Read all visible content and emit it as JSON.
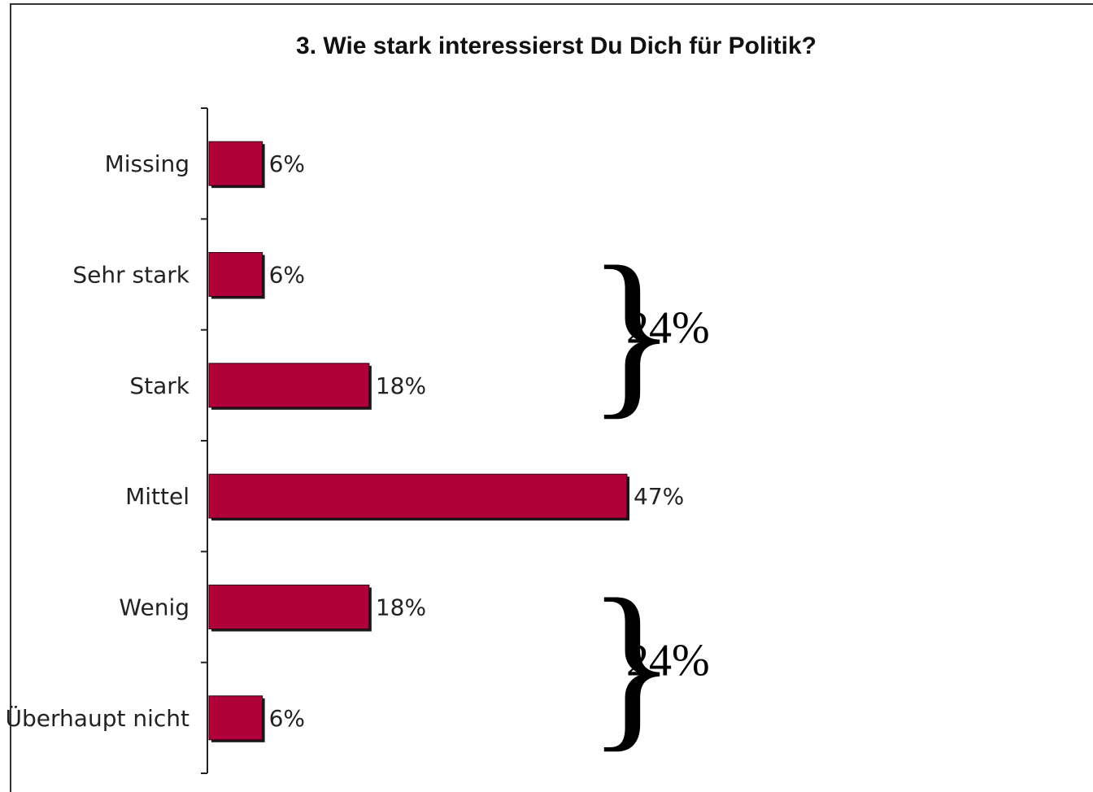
{
  "chart_data": {
    "type": "bar",
    "orientation": "horizontal",
    "title": "3. Wie stark interessierst Du Dich für Politik?",
    "categories": [
      "Missing",
      "Sehr stark",
      "Stark",
      "Mittel",
      "Wenig",
      "Überhaupt nicht"
    ],
    "values": [
      6,
      6,
      18,
      47,
      18,
      6
    ],
    "value_labels": [
      "6%",
      "6%",
      "18%",
      "47%",
      "18%",
      "6%"
    ],
    "xlim": [
      0,
      100
    ],
    "grid": false,
    "bar_color": "#b0003a",
    "annotations": [
      {
        "type": "brace",
        "covers": [
          "Sehr stark",
          "Stark"
        ],
        "label": "24%"
      },
      {
        "type": "brace",
        "covers": [
          "Wenig",
          "Überhaupt nicht"
        ],
        "label": "24%"
      }
    ]
  }
}
